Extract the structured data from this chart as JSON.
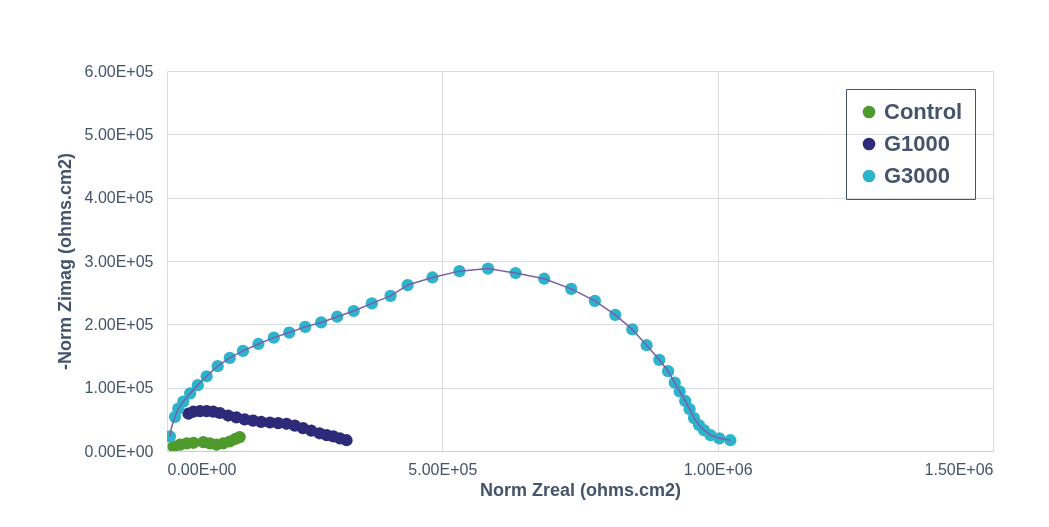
{
  "chart_data": {
    "type": "scatter",
    "xlabel": "Norm Zreal (ohms.cm2)",
    "ylabel": "-Norm Zimag (ohms.cm2)",
    "xlim": [
      0,
      1500000
    ],
    "ylim": [
      0,
      600000
    ],
    "xticks": [
      {
        "value": 0,
        "label": "0.00E+00"
      },
      {
        "value": 500000,
        "label": "5.00E+05"
      },
      {
        "value": 1000000,
        "label": "1.00E+06"
      },
      {
        "value": 1500000,
        "label": "1.50E+06"
      }
    ],
    "yticks": [
      {
        "value": 0,
        "label": "0.00E+00"
      },
      {
        "value": 100000,
        "label": "1.00E+05"
      },
      {
        "value": 200000,
        "label": "2.00E+05"
      },
      {
        "value": 300000,
        "label": "3.00E+05"
      },
      {
        "value": 400000,
        "label": "4.00E+05"
      },
      {
        "value": 500000,
        "label": "5.00E+05"
      },
      {
        "value": 600000,
        "label": "6.00E+05"
      }
    ],
    "grid": true,
    "legend": "top right",
    "series": [
      {
        "type": "line",
        "color": "#7b5ea7",
        "x": [
          5400,
          8500,
          14500,
          20500,
          29600,
          42000,
          56000,
          72000,
          92000,
          114000,
          138000,
          166000,
          194000,
          222000,
          251000,
          280000,
          309000,
          339000,
          372000,
          406000,
          437000,
          482000,
          531000,
          583000,
          633000,
          685000,
          734000,
          777000,
          814000,
          845000,
          871000,
          894000,
          910000,
          922000,
          931000,
          941000,
          949000,
          957000,
          966000,
          975000,
          987000,
          1003000,
          1023000
        ],
        "values": [
          23000,
          38000,
          54000,
          67000,
          78000,
          91000,
          104000,
          118000,
          134000,
          147000,
          158000,
          169000,
          179000,
          187000,
          196000,
          203000,
          212000,
          221000,
          233000,
          245000,
          262000,
          274000,
          284000,
          288000,
          281000,
          272000,
          256000,
          237000,
          215000,
          192000,
          167000,
          144000,
          126000,
          108000,
          94000,
          79000,
          66000,
          52000,
          41000,
          33000,
          25000,
          20000,
          17000
        ]
      },
      {
        "name": "Control",
        "color": "#4e9a2c",
        "x": [
          12000,
          24000,
          36000,
          48000,
          66000,
          78000,
          90000,
          102000,
          114000,
          124000,
          132000
        ],
        "values": [
          7000,
          10000,
          12000,
          13000,
          14000,
          12000,
          10000,
          12000,
          15000,
          19000,
          22000
        ]
      },
      {
        "name": "G1000",
        "color": "#2e2a7a",
        "x": [
          39000,
          48000,
          60000,
          72000,
          84000,
          96000,
          111000,
          126000,
          141000,
          156000,
          171000,
          187000,
          202000,
          217000,
          232000,
          247000,
          262000,
          277000,
          290000,
          302000,
          314000,
          326000
        ],
        "values": [
          59000,
          62000,
          63000,
          63000,
          62000,
          60000,
          56000,
          53000,
          50000,
          48000,
          46000,
          45000,
          44000,
          43000,
          40000,
          36000,
          32000,
          28000,
          25000,
          23000,
          20000,
          17000
        ]
      },
      {
        "name": "G3000",
        "color": "#2db3cc",
        "x": [
          5400,
          14500,
          20500,
          29600,
          42000,
          56000,
          72000,
          92000,
          114000,
          138000,
          166000,
          194000,
          222000,
          251000,
          280000,
          309000,
          339000,
          372000,
          406000,
          437000,
          482000,
          531000,
          583000,
          633000,
          685000,
          734000,
          777000,
          814000,
          845000,
          871000,
          894000,
          910000,
          922000,
          931000,
          941000,
          949000,
          957000,
          966000,
          975000,
          987000,
          1003000,
          1023000
        ],
        "values": [
          23000,
          54000,
          67000,
          78000,
          91000,
          104000,
          118000,
          134000,
          147000,
          158000,
          169000,
          179000,
          187000,
          196000,
          203000,
          212000,
          221000,
          233000,
          245000,
          262000,
          274000,
          284000,
          288000,
          281000,
          272000,
          256000,
          237000,
          215000,
          192000,
          167000,
          144000,
          126000,
          108000,
          94000,
          79000,
          66000,
          52000,
          41000,
          33000,
          25000,
          20000,
          17000
        ]
      }
    ]
  }
}
